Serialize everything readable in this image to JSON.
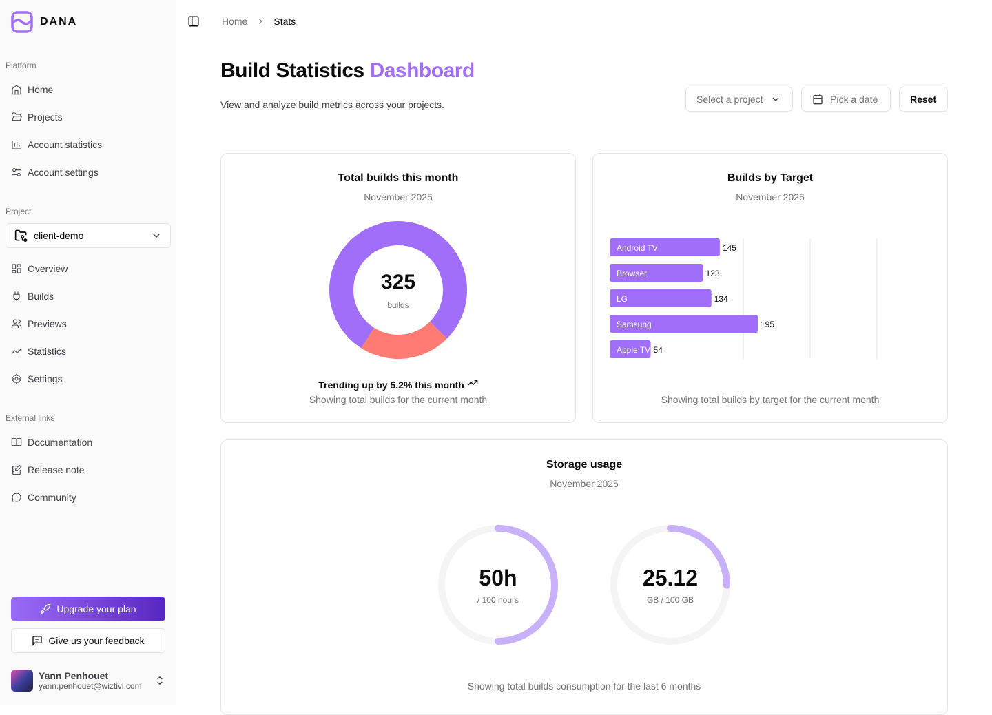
{
  "brand": {
    "name": "DANA",
    "accent": "#a06ef8"
  },
  "sidebar": {
    "platform_label": "Platform",
    "platform": [
      {
        "label": "Home",
        "icon": "home-icon"
      },
      {
        "label": "Projects",
        "icon": "folder-icon"
      },
      {
        "label": "Account statistics",
        "icon": "bar-chart-icon"
      },
      {
        "label": "Account settings",
        "icon": "sliders-icon"
      }
    ],
    "project_label": "Project",
    "project_select": "client-demo",
    "project": [
      {
        "label": "Overview",
        "icon": "grid-icon"
      },
      {
        "label": "Builds",
        "icon": "plug-icon"
      },
      {
        "label": "Previews",
        "icon": "users-icon"
      },
      {
        "label": "Statistics",
        "icon": "trending-icon"
      },
      {
        "label": "Settings",
        "icon": "gear-icon"
      }
    ],
    "external_label": "External links",
    "external": [
      {
        "label": "Documentation",
        "icon": "book-icon"
      },
      {
        "label": "Release note",
        "icon": "notebook-pen-icon"
      },
      {
        "label": "Community",
        "icon": "message-icon"
      }
    ],
    "upgrade": "Upgrade your plan",
    "feedback": "Give us your feedback",
    "user": {
      "name": "Yann Penhouet",
      "email": "yann.penhouet@wiztivi.com"
    }
  },
  "breadcrumb": [
    "Home",
    "Stats"
  ],
  "header": {
    "title": "Build Statistics",
    "title_accent": "Dashboard",
    "subtitle": "View and analyze build metrics across your projects.",
    "select_project": "Select a project",
    "pick_date": "Pick a date",
    "reset": "Reset"
  },
  "chart_data": [
    {
      "type": "pie",
      "title": "Total builds this month",
      "subtitle": "November 2025",
      "center_value": "325",
      "center_label": "builds",
      "values": [
        255,
        70
      ],
      "colors": [
        "#a06ef8",
        "#ff7b73"
      ],
      "trend": "Trending up by 5.2% this month",
      "footer": "Showing total builds for the current month"
    },
    {
      "type": "bar",
      "orientation": "horizontal",
      "title": "Builds by Target",
      "subtitle": "November 2025",
      "categories": [
        "Android TV",
        "Browser",
        "LG",
        "Samsung",
        "Apple TV"
      ],
      "values": [
        145,
        123,
        134,
        195,
        54
      ],
      "color": "#a06ef8",
      "grid": true,
      "footer": "Showing total builds by target for the current month"
    }
  ],
  "storage": {
    "title": "Storage usage",
    "subtitle": "November 2025",
    "gauges": [
      {
        "value": "50h",
        "label": "/ 100 hours",
        "fraction": 0.5
      },
      {
        "value": "25.12",
        "label": "GB / 100 GB",
        "fraction": 0.2512
      }
    ],
    "footer": "Showing total builds consumption for the last 6 months",
    "color": "#c8b0fa"
  }
}
